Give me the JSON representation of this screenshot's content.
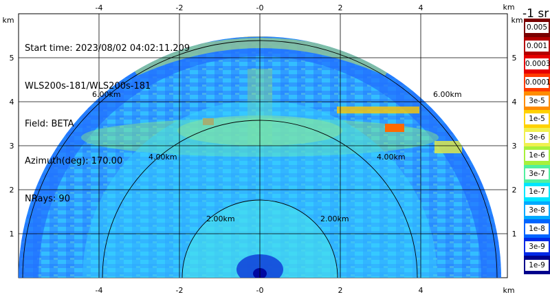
{
  "info": {
    "start_time": "Start time: 2023/08/02 04:02:11.209",
    "instrument": "WLS200s-181/WLS200s-181",
    "field": "Field: BETA",
    "azimuth": "Azimuth(deg): 170.00",
    "nrays": "NRays: 90"
  },
  "axes": {
    "x_ticks": [
      "-4",
      "-2",
      "-0",
      "2",
      "4"
    ],
    "y_ticks": [
      "5",
      "4",
      "3",
      "2",
      "1"
    ],
    "unit": "km",
    "range_rings": [
      "2.00km",
      "4.00km",
      "6.00km"
    ]
  },
  "colorbar": {
    "title": "-1 sr",
    "labels": [
      "0.005",
      "0.001",
      "0.0003",
      "0.0001",
      "3e-5",
      "1e-5",
      "3e-6",
      "1e-6",
      "3e-7",
      "1e-7",
      "3e-8",
      "1e-8",
      "3e-9",
      "1e-9"
    ],
    "colors": [
      "#7a0000",
      "#b40000",
      "#e60000",
      "#ff3c00",
      "#ff8c00",
      "#ffd200",
      "#f0f050",
      "#a8f03c",
      "#50f0a0",
      "#00e6ff",
      "#00aaff",
      "#0064ff",
      "#0028e6",
      "#00008c"
    ]
  }
}
